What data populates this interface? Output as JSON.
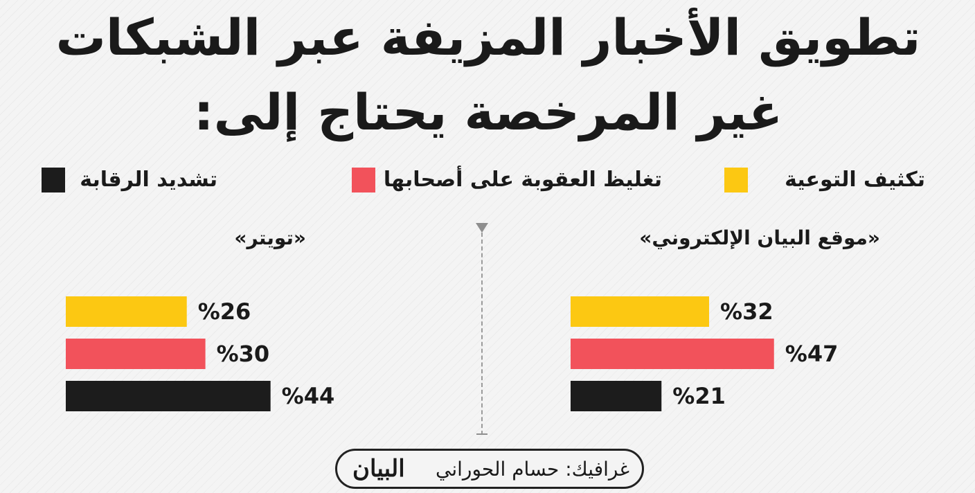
{
  "title": "تطويق الأخبار المزيفة عبر الشبكات غير المرخصة يحتاج إلى:",
  "legend": [
    {
      "label": "تكثيف التوعية",
      "color": "#fcc812"
    },
    {
      "label": "تغليظ العقوبة على أصحابها",
      "color": "#f2525b"
    },
    {
      "label": "تشديد الرقابة",
      "color": "#1c1c1c"
    }
  ],
  "chart_data": [
    {
      "type": "bar",
      "title": "«موقع البيان الإلكتروني»",
      "categories": [
        "تكثيف التوعية",
        "تغليظ العقوبة على أصحابها",
        "تشديد الرقابة"
      ],
      "values": [
        32,
        47,
        21
      ],
      "value_labels": [
        "%32",
        "%47",
        "%21"
      ],
      "colors": [
        "#fcc812",
        "#f2525b",
        "#1c1c1c"
      ],
      "unit": "%"
    },
    {
      "type": "bar",
      "title": "«تويتر»",
      "categories": [
        "تكثيف التوعية",
        "تغليظ العقوبة على أصحابها",
        "تشديد الرقابة"
      ],
      "values": [
        26,
        30,
        44
      ],
      "value_labels": [
        "%26",
        "%30",
        "%44"
      ],
      "colors": [
        "#fcc812",
        "#f2525b",
        "#1c1c1c"
      ],
      "unit": "%"
    }
  ],
  "credit": {
    "text": "غرافيك: حسام الحوراني",
    "logo": "البيان"
  }
}
